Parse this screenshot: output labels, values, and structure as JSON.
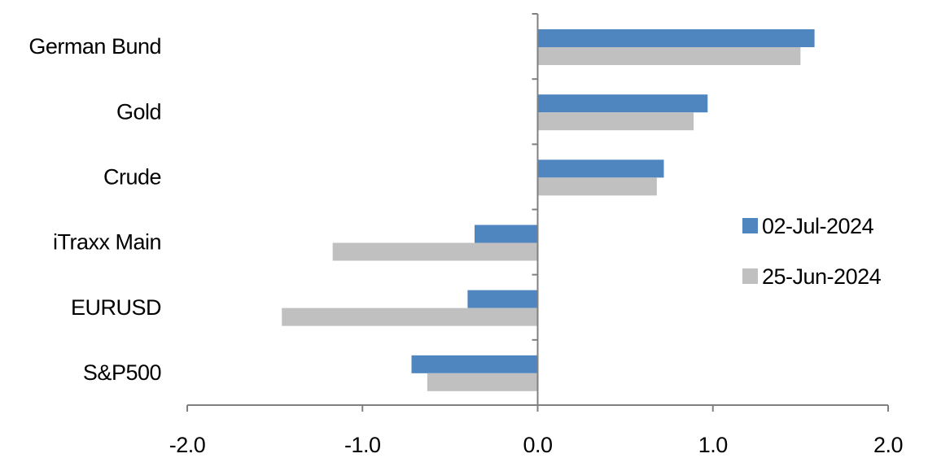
{
  "chart_data": {
    "type": "bar",
    "orientation": "horizontal",
    "categories": [
      "German Bund",
      "Gold",
      "Crude",
      "iTraxx Main",
      "EURUSD",
      "S&P500"
    ],
    "series": [
      {
        "name": "02-Jul-2024",
        "color": "#4f86c0",
        "values": [
          1.58,
          0.97,
          0.72,
          -0.36,
          -0.4,
          -0.72
        ]
      },
      {
        "name": "25-Jun-2024",
        "color": "#c0c0c0",
        "values": [
          1.5,
          0.89,
          0.68,
          -1.17,
          -1.46,
          -0.63
        ]
      }
    ],
    "xlim": [
      -2.0,
      2.0
    ],
    "xticks": [
      "-2.0",
      "-1.0",
      "0.0",
      "1.0",
      "2.0"
    ],
    "title": "",
    "xlabel": "",
    "ylabel": "",
    "grid": false,
    "legend_position": "right"
  }
}
